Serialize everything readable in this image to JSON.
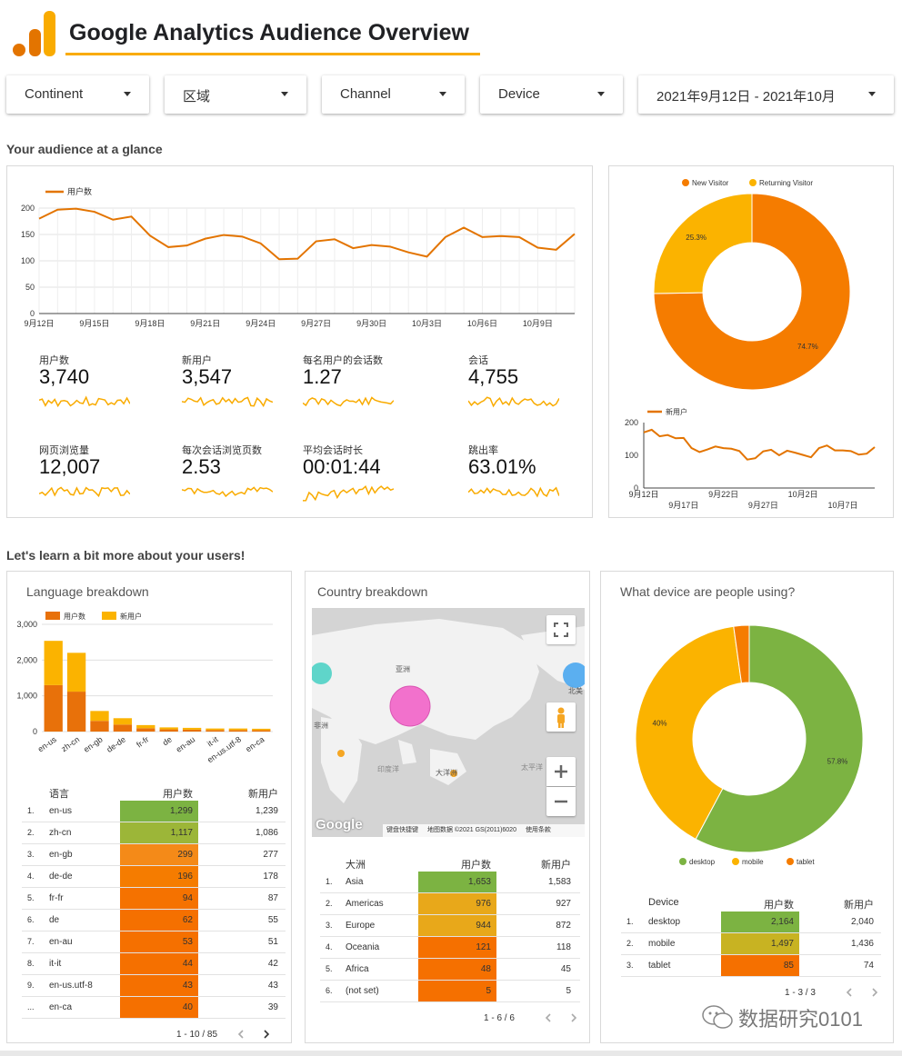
{
  "header": {
    "title": "Google Analytics Audience Overview",
    "colors": {
      "logo_dark": "#e37400",
      "logo_light": "#f9ab00",
      "underline": "#f9ab00"
    }
  },
  "filters": [
    {
      "label": "Continent"
    },
    {
      "label": "区域"
    },
    {
      "label": "Channel"
    },
    {
      "label": "Device"
    },
    {
      "label": "2021年9月12日 - 2021年10月"
    }
  ],
  "section1_title": "Your audience at a glance",
  "section2_title": "Let's learn a bit more about your users!",
  "users_line": {
    "legend": "用户数",
    "x_ticks": [
      "9月12日",
      "9月15日",
      "9月18日",
      "9月21日",
      "9月24日",
      "9月27日",
      "9月30日",
      "10月3日",
      "10月6日",
      "10月9日"
    ],
    "y_ticks": [
      "200",
      "150",
      "100",
      "50",
      "0"
    ]
  },
  "kpis": [
    {
      "label": "用户数",
      "value": "3,740"
    },
    {
      "label": "新用户",
      "value": "3,547"
    },
    {
      "label": "每名用户的会话数",
      "value": "1.27"
    },
    {
      "label": "会话",
      "value": "4,755"
    },
    {
      "label": "网页浏览量",
      "value": "12,007"
    },
    {
      "label": "每次会话浏览页数",
      "value": "2.53"
    },
    {
      "label": "平均会话时长",
      "value": "00:01:44"
    },
    {
      "label": "跳出率",
      "value": "63.01%"
    }
  ],
  "visitor_pie": {
    "legend": [
      "New Visitor",
      "Returning Visitor"
    ],
    "labels": [
      "74.7%",
      "25.3%"
    ]
  },
  "newusers_line": {
    "legend": "新用户",
    "x_ticks_top": [
      "9月12日",
      "9月22日",
      "10月2日"
    ],
    "x_ticks_bottom": [
      "9月17日",
      "9月27日",
      "10月7日"
    ],
    "y_ticks": [
      "200",
      "100",
      "0"
    ]
  },
  "language": {
    "title": "Language breakdown",
    "legend": [
      "用户数",
      "新用户"
    ],
    "y_ticks": [
      "3,000",
      "2,000",
      "1,000",
      "0"
    ],
    "table_headers": [
      "语言",
      "用户数",
      "新用户"
    ],
    "rows": [
      {
        "idx": "1.",
        "name": "en-us",
        "users": "1,299",
        "newu": "1,239"
      },
      {
        "idx": "2.",
        "name": "zh-cn",
        "users": "1,117",
        "newu": "1,086"
      },
      {
        "idx": "3.",
        "name": "en-gb",
        "users": "299",
        "newu": "277"
      },
      {
        "idx": "4.",
        "name": "de-de",
        "users": "196",
        "newu": "178"
      },
      {
        "idx": "5.",
        "name": "fr-fr",
        "users": "94",
        "newu": "87"
      },
      {
        "idx": "6.",
        "name": "de",
        "users": "62",
        "newu": "55"
      },
      {
        "idx": "7.",
        "name": "en-au",
        "users": "53",
        "newu": "51"
      },
      {
        "idx": "8.",
        "name": "it-it",
        "users": "44",
        "newu": "42"
      },
      {
        "idx": "9.",
        "name": "en-us.utf-8",
        "users": "43",
        "newu": "43"
      },
      {
        "idx": "...",
        "name": "en-ca",
        "users": "40",
        "newu": "39"
      }
    ],
    "pager": "1 - 10 / 85"
  },
  "country": {
    "title": "Country breakdown",
    "map_labels": [
      "亚洲",
      "非洲",
      "大洋洲",
      "太平洋",
      "印度洋",
      "北美"
    ],
    "map_footer": {
      "brand": "Google",
      "shortcuts": "键盘快捷键",
      "mapdata": "地图数据 ©2021 GS(2011)6020",
      "terms": "使用条款"
    },
    "table_headers": [
      "大洲",
      "用户数",
      "新用户"
    ],
    "rows": [
      {
        "idx": "1.",
        "name": "Asia",
        "users": "1,653",
        "newu": "1,583"
      },
      {
        "idx": "2.",
        "name": "Americas",
        "users": "976",
        "newu": "927"
      },
      {
        "idx": "3.",
        "name": "Europe",
        "users": "944",
        "newu": "872"
      },
      {
        "idx": "4.",
        "name": "Oceania",
        "users": "121",
        "newu": "118"
      },
      {
        "idx": "5.",
        "name": "Africa",
        "users": "48",
        "newu": "45"
      },
      {
        "idx": "6.",
        "name": "(not set)",
        "users": "5",
        "newu": "5"
      }
    ],
    "pager": "1 - 6 / 6"
  },
  "device": {
    "title": "What device are people using?",
    "pie_labels": [
      "57.8%",
      "40%"
    ],
    "legend": [
      "desktop",
      "mobile",
      "tablet"
    ],
    "table_headers": [
      "Device",
      "用户数",
      "新用户"
    ],
    "rows": [
      {
        "idx": "1.",
        "name": "desktop",
        "users": "2,164",
        "newu": "2,040"
      },
      {
        "idx": "2.",
        "name": "mobile",
        "users": "1,497",
        "newu": "1,436"
      },
      {
        "idx": "3.",
        "name": "tablet",
        "users": "85",
        "newu": "74"
      }
    ],
    "pager": "1 - 3 / 3"
  },
  "watermark": "数据研究0101",
  "chart_data": [
    {
      "type": "line",
      "legend_name": "用户数",
      "x": [
        "9月12日",
        "9月13日",
        "9月14日",
        "9月15日",
        "9月16日",
        "9月17日",
        "9月18日",
        "9月19日",
        "9月20日",
        "9月21日",
        "9月22日",
        "9月23日",
        "9月24日",
        "9月25日",
        "9月26日",
        "9月27日",
        "9月28日",
        "9月29日",
        "9月30日",
        "10月1日",
        "10月2日",
        "10月3日",
        "10月4日",
        "10月5日",
        "10月6日",
        "10月7日",
        "10月8日",
        "10月9日",
        "10月10日",
        "10月11日"
      ],
      "values": [
        180,
        197,
        199,
        193,
        178,
        184,
        148,
        126,
        129,
        142,
        149,
        146,
        133,
        103,
        104,
        137,
        141,
        124,
        130,
        127,
        116,
        108,
        145,
        163,
        145,
        147,
        145,
        125,
        121,
        151
      ],
      "ylim": [
        0,
        200
      ]
    },
    {
      "type": "pie",
      "labels": [
        "New Visitor",
        "Returning Visitor"
      ],
      "values": [
        74.7,
        25.3
      ],
      "colors": [
        "#f57c00",
        "#fbb300"
      ]
    },
    {
      "type": "line",
      "legend_name": "新用户",
      "values": [
        170,
        178,
        158,
        162,
        152,
        153,
        122,
        110,
        118,
        127,
        122,
        120,
        113,
        87,
        91,
        112,
        117,
        100,
        114,
        108,
        101,
        94,
        122,
        130,
        115,
        115,
        113,
        102,
        105,
        125
      ],
      "ylim": [
        0,
        200
      ]
    },
    {
      "type": "bar",
      "categories": [
        "en-us",
        "zh-cn",
        "en-gb",
        "de-de",
        "fr-fr",
        "de",
        "en-au",
        "it-it",
        "en-us.utf-8",
        "en-ca"
      ],
      "series": [
        {
          "name": "用户数",
          "values": [
            1299,
            1117,
            299,
            196,
            94,
            62,
            53,
            44,
            43,
            40
          ]
        },
        {
          "name": "新用户",
          "values": [
            1239,
            1086,
            277,
            178,
            87,
            55,
            51,
            42,
            43,
            39
          ]
        }
      ],
      "ylim": [
        0,
        3000
      ]
    },
    {
      "type": "pie",
      "labels": [
        "desktop",
        "mobile",
        "tablet"
      ],
      "values": [
        57.8,
        40,
        2.2
      ],
      "colors": [
        "#7cb342",
        "#fbb300",
        "#f57c00"
      ]
    }
  ]
}
